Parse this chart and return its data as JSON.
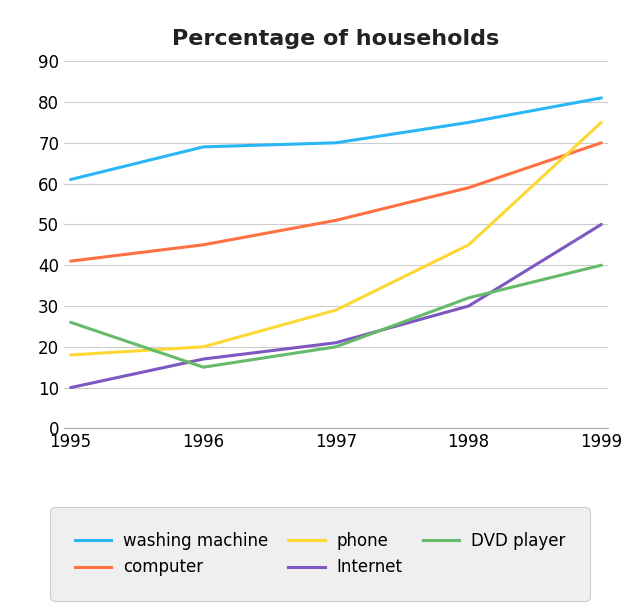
{
  "title": "Percentage of households",
  "years": [
    1995,
    1996,
    1997,
    1998,
    1999
  ],
  "series": [
    {
      "label": "washing machine",
      "values": [
        61,
        69,
        70,
        75,
        81
      ],
      "color": "#29B6F6"
    },
    {
      "label": "computer",
      "values": [
        41,
        45,
        51,
        59,
        70
      ],
      "color": "#FF7043"
    },
    {
      "label": "phone",
      "values": [
        18,
        20,
        29,
        45,
        75
      ],
      "color": "#FDD835"
    },
    {
      "label": "Internet",
      "values": [
        10,
        17,
        21,
        30,
        50
      ],
      "color": "#7E57C2"
    },
    {
      "label": "DVD player",
      "values": [
        26,
        15,
        20,
        32,
        40
      ],
      "color": "#66BB6A"
    }
  ],
  "xlim": [
    1995,
    1999
  ],
  "ylim": [
    0,
    90
  ],
  "yticks": [
    0,
    10,
    20,
    30,
    40,
    50,
    60,
    70,
    80,
    90
  ],
  "xticks": [
    1995,
    1996,
    1997,
    1998,
    1999
  ],
  "background_color": "#ffffff",
  "grid_color": "#cccccc",
  "line_width": 2.2,
  "title_fontsize": 16,
  "tick_fontsize": 12,
  "legend_fontsize": 12
}
